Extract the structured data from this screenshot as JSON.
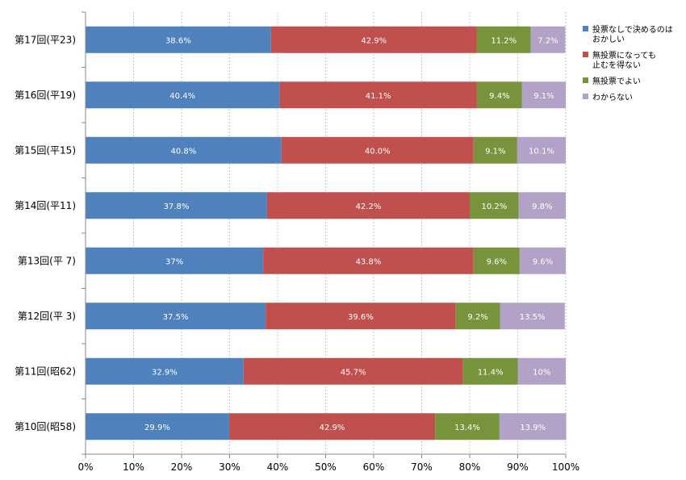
{
  "chart_data": {
    "type": "bar",
    "orientation": "horizontal",
    "stacked": "percent",
    "categories": [
      "第17回(平23)",
      "第16回(平19)",
      "第15回(平15)",
      "第14回(平11)",
      "第13回(平 7)",
      "第12回(平 3)",
      "第11回(昭62)",
      "第10回(昭58)"
    ],
    "series": [
      {
        "name": "投票なしで決めるのはおかしい",
        "legend_lines": [
          "投票なしで決めるのは",
          "おかしい"
        ],
        "color": "#4f81bd",
        "values": [
          38.6,
          40.4,
          40.8,
          37.8,
          37,
          37.5,
          32.9,
          29.9
        ],
        "labels": [
          "38.6%",
          "40.4%",
          "40.8%",
          "37.8%",
          "37%",
          "37.5%",
          "32.9%",
          "29.9%"
        ]
      },
      {
        "name": "無投票になっても止むを得ない",
        "legend_lines": [
          "無投票になっても",
          "止むを得ない"
        ],
        "color": "#c0504d",
        "values": [
          42.9,
          41.1,
          40.0,
          42.2,
          43.8,
          39.6,
          45.7,
          42.9
        ],
        "labels": [
          "42.9%",
          "41.1%",
          "40.0%",
          "42.2%",
          "43.8%",
          "39.6%",
          "45.7%",
          "42.9%"
        ]
      },
      {
        "name": "無投票でよい",
        "legend_lines": [
          "無投票でよい"
        ],
        "color": "#77933c",
        "values": [
          11.2,
          9.4,
          9.1,
          10.2,
          9.6,
          9.2,
          11.4,
          13.4
        ],
        "labels": [
          "11.2%",
          "9.4%",
          "9.1%",
          "10.2%",
          "9.6%",
          "9.2%",
          "11.4%",
          "13.4%"
        ]
      },
      {
        "name": "わからない",
        "legend_lines": [
          "わからない"
        ],
        "color": "#b3a2c7",
        "values": [
          7.2,
          9.1,
          10.1,
          9.8,
          9.6,
          13.5,
          10,
          13.9
        ],
        "labels": [
          "7.2%",
          "9.1%",
          "10.1%",
          "9.8%",
          "9.6%",
          "13.5%",
          "10%",
          "13.9%"
        ]
      }
    ],
    "x_ticks": [
      "0%",
      "10%",
      "20%",
      "30%",
      "40%",
      "50%",
      "60%",
      "70%",
      "80%",
      "90%",
      "100%"
    ],
    "xlim": [
      0,
      100
    ],
    "grid": true,
    "legend_position": "right"
  }
}
